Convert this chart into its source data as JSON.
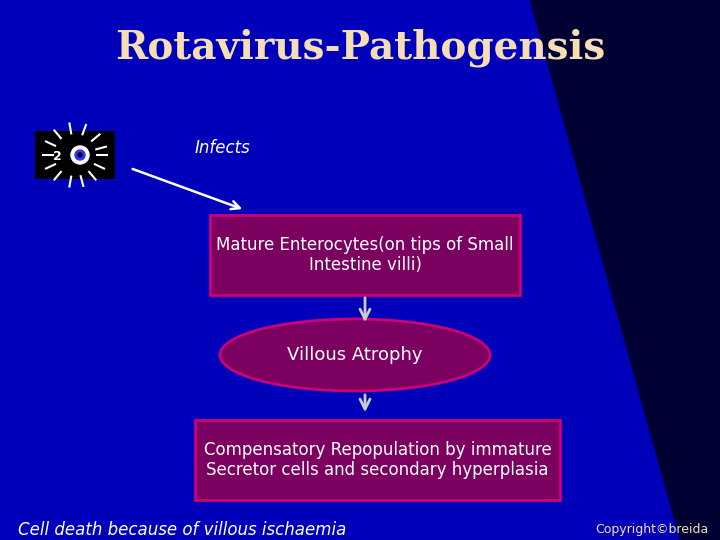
{
  "title": "Rotavirus-Pathogensis",
  "title_color": "#F5DEB3",
  "title_fontsize": 28,
  "bg_color": "#0000BB",
  "infects_label": "Infects",
  "box1_text": "Mature Enterocytes(on tips of Small\nIntestine villi)",
  "box2_text": "Villous Atrophy",
  "box3_text": "Compensatory Repopulation by immature\nSecretor cells and secondary hyperplasia",
  "bottom_text": "Cell death because of villous ischaemia",
  "copyright_text": "Copyright©breida",
  "white": "#FFFFFF",
  "box_bg": "#7B0060",
  "box_border": "#CC0077",
  "arrow_color": "#CCCCCC",
  "dark_bg": "#000033"
}
